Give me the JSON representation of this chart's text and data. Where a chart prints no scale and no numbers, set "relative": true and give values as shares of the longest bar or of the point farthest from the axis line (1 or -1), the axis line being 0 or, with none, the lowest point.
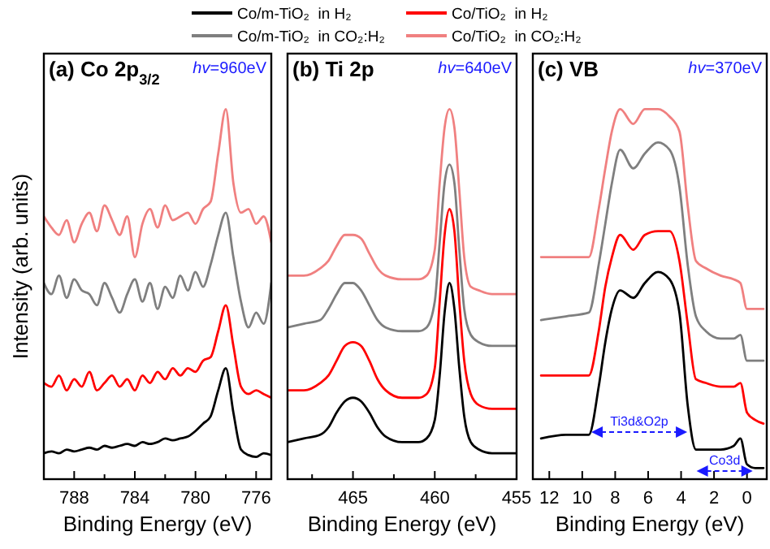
{
  "chart_data": [
    {
      "type": "line",
      "title": "(a) Co 2p$_{3/2}$",
      "xlabel": "Binding Energy (eV)",
      "ylabel": "Intensity (arb. units)",
      "relative": true,
      "legend": "top",
      "marker": "none",
      "line_style": "solid",
      "grid": false,
      "xlim": [
        790,
        775
      ],
      "xticks": [
        788,
        {
          "value": 786,
          "label": null
        },
        784,
        {
          "value": 782,
          "label": null
        },
        780,
        {
          "value": 778,
          "label": null
        },
        776
      ],
      "annotations": [
        "hv=960eV"
      ],
      "x": [
        790,
        789.5,
        789,
        788.5,
        788,
        787.5,
        787,
        786.5,
        786,
        785.5,
        785,
        784.5,
        784,
        783.5,
        783,
        782.5,
        782,
        781.5,
        781,
        780.5,
        780,
        779.5,
        779,
        778.5,
        778,
        777.5,
        777,
        776.5,
        776,
        775.5,
        775
      ],
      "series": [
        {
          "name": "Co/m-TiO₂  in H₂",
          "color": "#000000",
          "values": [
            0.07,
            0.075,
            0.07,
            0.08,
            0.075,
            0.08,
            0.085,
            0.08,
            0.09,
            0.085,
            0.09,
            0.095,
            0.09,
            0.1,
            0.095,
            0.1,
            0.11,
            0.105,
            0.11,
            0.115,
            0.13,
            0.15,
            0.17,
            0.24,
            0.3,
            0.18,
            0.08,
            0.065,
            0.06,
            0.07,
            0.065
          ]
        },
        {
          "name": "Co/m-TiO₂  in CO₂:H₂",
          "color": "#7f7f7f",
          "values": [
            0.53,
            0.5,
            0.55,
            0.49,
            0.54,
            0.51,
            0.5,
            0.47,
            0.53,
            0.49,
            0.45,
            0.5,
            0.54,
            0.48,
            0.53,
            0.46,
            0.52,
            0.49,
            0.55,
            0.51,
            0.56,
            0.52,
            0.58,
            0.66,
            0.72,
            0.6,
            0.48,
            0.41,
            0.45,
            0.42,
            0.53
          ]
        },
        {
          "name": "Co/TiO₂  in H₂",
          "color": "#ff0000",
          "values": [
            0.26,
            0.25,
            0.28,
            0.24,
            0.27,
            0.25,
            0.29,
            0.24,
            0.26,
            0.28,
            0.25,
            0.27,
            0.24,
            0.28,
            0.26,
            0.29,
            0.27,
            0.3,
            0.28,
            0.3,
            0.29,
            0.32,
            0.33,
            0.4,
            0.47,
            0.36,
            0.25,
            0.23,
            0.24,
            0.23,
            0.22
          ]
        },
        {
          "name": "Co/TiO₂  in CO₂:H₂",
          "color": "#f08080",
          "values": [
            0.71,
            0.68,
            0.66,
            0.7,
            0.64,
            0.69,
            0.72,
            0.67,
            0.74,
            0.7,
            0.66,
            0.71,
            0.6,
            0.69,
            0.73,
            0.68,
            0.74,
            0.7,
            0.71,
            0.72,
            0.69,
            0.73,
            0.75,
            0.88,
            1.0,
            0.8,
            0.72,
            0.73,
            0.69,
            0.71,
            0.64
          ]
        }
      ]
    },
    {
      "type": "line",
      "title": "(b) Ti 2p",
      "xlabel": "Binding Energy (eV)",
      "relative": true,
      "marker": "none",
      "line_style": "solid",
      "grid": false,
      "xlim": [
        469,
        455
      ],
      "xticks": [
        {
          "value": 467.5,
          "label": null
        },
        465,
        {
          "value": 462.5,
          "label": null
        },
        460,
        {
          "value": 457.5,
          "label": null
        },
        455
      ],
      "annotations": [
        "hv=640eV"
      ],
      "x": [
        469,
        468,
        467,
        466.5,
        466,
        465.5,
        465,
        464.5,
        464,
        463.5,
        463,
        462,
        461,
        460.5,
        460,
        459.7,
        459.4,
        459.1,
        458.8,
        458.5,
        458.2,
        457.8,
        457.3,
        456.5,
        455.5,
        455
      ],
      "series": [
        {
          "color": "#000000",
          "values": [
            0.1,
            0.11,
            0.12,
            0.14,
            0.18,
            0.21,
            0.22,
            0.21,
            0.18,
            0.14,
            0.115,
            0.1,
            0.1,
            0.11,
            0.16,
            0.28,
            0.45,
            0.53,
            0.46,
            0.3,
            0.17,
            0.1,
            0.08,
            0.07,
            0.07,
            0.07
          ]
        },
        {
          "color": "#7f7f7f",
          "values": [
            0.41,
            0.42,
            0.43,
            0.46,
            0.5,
            0.53,
            0.53,
            0.51,
            0.47,
            0.43,
            0.41,
            0.4,
            0.4,
            0.41,
            0.48,
            0.64,
            0.8,
            0.85,
            0.8,
            0.62,
            0.46,
            0.39,
            0.37,
            0.36,
            0.36,
            0.36
          ]
        },
        {
          "color": "#ff0000",
          "values": [
            0.24,
            0.24,
            0.26,
            0.28,
            0.32,
            0.36,
            0.37,
            0.36,
            0.32,
            0.27,
            0.24,
            0.22,
            0.22,
            0.23,
            0.3,
            0.48,
            0.66,
            0.73,
            0.67,
            0.48,
            0.32,
            0.23,
            0.2,
            0.19,
            0.19,
            0.19
          ]
        },
        {
          "color": "#f08080",
          "values": [
            0.55,
            0.55,
            0.57,
            0.59,
            0.63,
            0.66,
            0.66,
            0.65,
            0.61,
            0.57,
            0.55,
            0.54,
            0.54,
            0.55,
            0.62,
            0.8,
            0.95,
            1.0,
            0.95,
            0.78,
            0.6,
            0.52,
            0.51,
            0.5,
            0.5,
            0.5
          ]
        }
      ]
    },
    {
      "type": "line",
      "title": "(c) VB",
      "xlabel": "Binding Energy (eV)",
      "relative": true,
      "marker": "none",
      "line_style": "solid",
      "grid": false,
      "xlim": [
        13,
        -1.2
      ],
      "xticks": [
        12,
        10,
        8,
        6,
        4,
        2,
        0
      ],
      "annotations": [
        "hv=370eV",
        "Ti3d&O2p",
        "Co3d"
      ],
      "x": [
        12.5,
        11,
        9.6,
        9,
        8.6,
        8.2,
        7.7,
        6.9,
        6.2,
        5.4,
        4.7,
        4.1,
        3.6,
        3.1,
        2.5,
        1.6,
        0.8,
        0.4,
        0,
        -0.5,
        -1
      ],
      "series": [
        {
          "color": "#000000",
          "values": [
            0.11,
            0.12,
            0.12,
            0.25,
            0.37,
            0.46,
            0.51,
            0.49,
            0.53,
            0.56,
            0.54,
            0.45,
            0.2,
            0.08,
            0.08,
            0.08,
            0.09,
            0.11,
            0.04,
            0.03,
            0.03
          ]
        },
        {
          "color": "#7f7f7f",
          "values": [
            0.43,
            0.44,
            0.45,
            0.58,
            0.69,
            0.8,
            0.89,
            0.84,
            0.88,
            0.91,
            0.89,
            0.79,
            0.58,
            0.44,
            0.4,
            0.38,
            0.38,
            0.39,
            0.32,
            0.32,
            0.32
          ]
        },
        {
          "color": "#ff0000",
          "values": [
            0.28,
            0.28,
            0.28,
            0.4,
            0.52,
            0.6,
            0.66,
            0.62,
            0.66,
            0.67,
            0.67,
            0.59,
            0.42,
            0.27,
            0.26,
            0.25,
            0.25,
            0.26,
            0.18,
            0.16,
            0.15
          ]
        },
        {
          "color": "#f08080",
          "values": [
            0.6,
            0.6,
            0.6,
            0.73,
            0.84,
            0.94,
            1.0,
            0.96,
            1.0,
            1.0,
            0.98,
            0.94,
            0.74,
            0.59,
            0.57,
            0.55,
            0.54,
            0.53,
            0.46,
            0.46,
            0.46
          ]
        }
      ]
    }
  ]
}
